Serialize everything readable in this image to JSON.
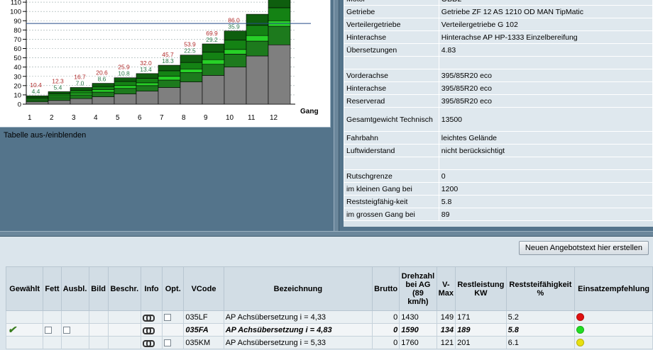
{
  "chart_data": {
    "type": "bar",
    "categories": [
      "1",
      "2",
      "3",
      "4",
      "5",
      "6",
      "7",
      "8",
      "9",
      "10",
      "11",
      "12"
    ],
    "xlabel": "Gang",
    "ylim": [
      0,
      120
    ],
    "yticks": [
      "0",
      "10",
      "20",
      "30",
      "40",
      "50",
      "60",
      "70",
      "80",
      "90",
      "100",
      "110"
    ],
    "series": [
      {
        "values": [
          2.5,
          4,
          6,
          8,
          11,
          14,
          18,
          24,
          31,
          40,
          52,
          64
        ]
      },
      {
        "values": [
          2,
          3,
          4,
          5,
          6,
          6,
          8,
          10,
          12,
          14,
          16,
          20
        ]
      },
      {
        "values": [
          1,
          1.5,
          2,
          2.5,
          3,
          3,
          4,
          4,
          5,
          5,
          6,
          6
        ]
      },
      {
        "values": [
          1.5,
          2.5,
          3,
          3.5,
          4.5,
          5,
          6,
          7,
          8,
          10,
          11,
          14
        ]
      },
      {
        "values": [
          2,
          2.5,
          3,
          3.5,
          4,
          5,
          6,
          8,
          9,
          10,
          12,
          14
        ]
      }
    ],
    "labels_top": [
      "10.4",
      "12.3",
      "16.7",
      "20.6",
      "25.9",
      "32.0",
      "45.7",
      "53.9",
      "69.9",
      "86.0",
      "",
      ""
    ],
    "labels_bottom": [
      "4.4",
      "5.4",
      "7.0",
      "8.6",
      "10.8",
      "13.4",
      "18.3",
      "22.5",
      "29.2",
      "35.9",
      "",
      ""
    ],
    "ref_line": 87
  },
  "toggle_label": "Tabelle aus-/einblenden",
  "props": [
    {
      "k": "Motor",
      "v": "OBD2"
    },
    {
      "k": "Getriebe",
      "v": "Getriebe ZF 12 AS 1210 OD MAN TipMatic"
    },
    {
      "k": "Verteilergetriebe",
      "v": "Verteilergetriebe G 102"
    },
    {
      "k": "Hinterachse",
      "v": "Hinterachse AP HP-1333 Einzelbereifung"
    },
    {
      "k": "Übersetzungen",
      "v": "4.83"
    },
    {
      "k": "",
      "v": ""
    },
    {
      "k": "Vorderachse",
      "v": "395/85R20 eco"
    },
    {
      "k": "Hinterachse",
      "v": "395/85R20 eco"
    },
    {
      "k": "Reserverad",
      "v": "395/85R20 eco"
    },
    {
      "k": "Gesamtgewicht Technisch",
      "v": "13500"
    },
    {
      "k": "Fahrbahn",
      "v": "leichtes Gelände"
    },
    {
      "k": "Luftwiderstand",
      "v": "nicht berücksichtigt"
    },
    {
      "k": "",
      "v": ""
    },
    {
      "k": "Rutschgrenze",
      "v": "0"
    },
    {
      "k": "im kleinen Gang bei",
      "v": "1200"
    },
    {
      "k": "Reststeigfähig-keit",
      "v": "5.8"
    },
    {
      "k": "im grossen Gang bei",
      "v": "89"
    }
  ],
  "new_offer_label": "Neuen Angebotstext hier erstellen",
  "columns": [
    "Gewählt",
    "Fett",
    "Ausbl.",
    "Bild",
    "Beschr.",
    "Info",
    "Opt.",
    "VCode",
    "Bezeichnung",
    "Brutto",
    "Drehzahl bei AG (89 km/h)",
    "V-Max",
    "Restleistung KW",
    "Reststeifähigkeit %",
    "Einsatzempfehlung"
  ],
  "rows": [
    {
      "selected": false,
      "vcode": "035LF",
      "bez": "AP Achsübersetzung i = 4,33",
      "brutto": "0",
      "drehzahl": "1430",
      "vmax": "149",
      "restkw": "171",
      "rest": "5.2",
      "color": "#e01010"
    },
    {
      "selected": true,
      "vcode": "035FA",
      "bez": "AP Achsübersetzung i = 4,83",
      "brutto": "0",
      "drehzahl": "1590",
      "vmax": "134",
      "restkw": "189",
      "rest": "5.8",
      "color": "#22dd22"
    },
    {
      "selected": false,
      "vcode": "035KM",
      "bez": "AP Achsübersetzung i = 5,33",
      "brutto": "0",
      "drehzahl": "1760",
      "vmax": "121",
      "restkw": "201",
      "rest": "6.1",
      "color": "#e8e010"
    }
  ]
}
